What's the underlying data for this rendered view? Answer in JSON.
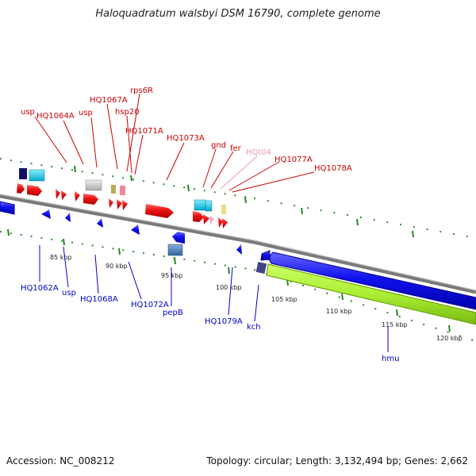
{
  "title": "Haloquadratum walsbyi DSM 16790, complete genome",
  "footer": {
    "accession": "Accession: NC_008212",
    "topology": "Topology: circular; Length: 3,132,494 bp; Genes: 2,662"
  },
  "colors": {
    "forward_gene": "#ee0000",
    "reverse_gene": "#0000ee",
    "forward_label": "#cc0000",
    "reverse_label": "#0000cc",
    "pseudo_label": "#ee99bb",
    "highlight_region": "#aaee33",
    "backbone": "#888888",
    "tick": "#228822"
  },
  "forward_labels": [
    {
      "text": "usp",
      "color": "red"
    },
    {
      "text": "HQ1064A",
      "color": "red"
    },
    {
      "text": "usp",
      "color": "red"
    },
    {
      "text": "HQ1067A",
      "color": "red"
    },
    {
      "text": "rps6R",
      "color": "red"
    },
    {
      "text": "hsp20",
      "color": "red"
    },
    {
      "text": "HQ1071A",
      "color": "red"
    },
    {
      "text": "HQ1073A",
      "color": "red"
    },
    {
      "text": "gnd",
      "color": "red"
    },
    {
      "text": "fer",
      "color": "red"
    },
    {
      "text": "HQt04",
      "color": "pink"
    },
    {
      "text": "HQ1077A",
      "color": "red"
    },
    {
      "text": "HQ1078A",
      "color": "red"
    }
  ],
  "reverse_labels": [
    {
      "text": "HQ1062A"
    },
    {
      "text": "usp"
    },
    {
      "text": "HQ1068A"
    },
    {
      "text": "HQ1072A"
    },
    {
      "text": "pepB"
    },
    {
      "text": "HQ1079A"
    },
    {
      "text": "kch"
    },
    {
      "text": "hmu"
    }
  ],
  "scale_ticks": [
    "85 kbp",
    "90 kbp",
    "95 kbp",
    "100 kbp",
    "105 kbp",
    "110 kbp",
    "115 kbp",
    "120 kbp"
  ]
}
